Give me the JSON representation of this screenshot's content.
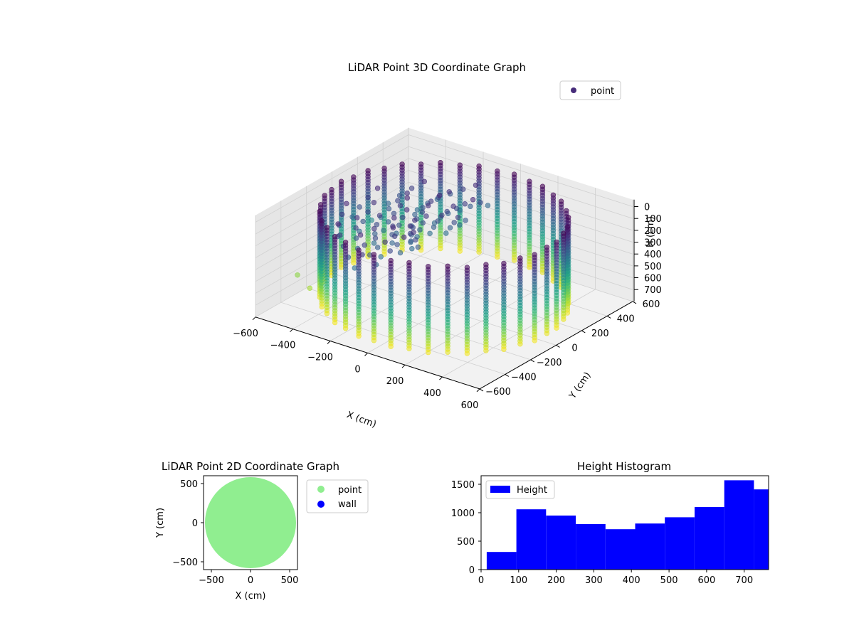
{
  "chart_data": [
    {
      "type": "scatter",
      "projection": "3d",
      "title": "LiDAR Point 3D Coordinate Graph",
      "xlabel": "X (cm)",
      "ylabel": "Y (cm)",
      "zlabel": "H (cm)",
      "xlim": [
        -600,
        600
      ],
      "ylim": [
        -600,
        600
      ],
      "zlim": [
        0,
        750
      ],
      "z_inverted": true,
      "xticks": [
        "−600",
        "−400",
        "−200",
        "0",
        "200",
        "400",
        "600"
      ],
      "yticks": [
        "−600",
        "−400",
        "−200",
        "0",
        "200",
        "400",
        "600"
      ],
      "zticks": [
        "0",
        "100",
        "200",
        "300",
        "400",
        "500",
        "600",
        "700"
      ],
      "colormap": "viridis",
      "grid": true,
      "legend": {
        "position": "top-right",
        "entries": [
          {
            "label": "point",
            "color": "#472c7a"
          }
        ]
      },
      "series": [
        {
          "name": "point",
          "description_shape": "cylindrical wall of radius ~550 cm, columns every ~10 degrees, height 0-750 cm; interior scan band near top",
          "radius": 550,
          "height_range": [
            0,
            750
          ]
        }
      ]
    },
    {
      "type": "scatter",
      "title": "LiDAR Point 2D Coordinate Graph",
      "xlabel": "X (cm)",
      "ylabel": "Y (cm)",
      "xlim": [
        -600,
        600
      ],
      "ylim": [
        -600,
        600
      ],
      "xticks": [
        "−500",
        "0",
        "500"
      ],
      "yticks": [
        "500",
        "0",
        "−500"
      ],
      "legend": {
        "position": "outside-right",
        "entries": [
          {
            "label": "point",
            "color": "#90ee90"
          },
          {
            "label": "wall",
            "color": "#0000ff"
          }
        ]
      },
      "series": [
        {
          "name": "point",
          "color": "#90ee90",
          "shape": "filled disc",
          "radius": 580
        }
      ]
    },
    {
      "type": "bar",
      "subtype": "histogram",
      "title": "Height Histogram",
      "xlim": [
        0,
        765
      ],
      "ylim": [
        0,
        1650
      ],
      "xticks": [
        "0",
        "100",
        "200",
        "300",
        "400",
        "500",
        "600",
        "700"
      ],
      "yticks": [
        "0",
        "500",
        "1000",
        "1500"
      ],
      "legend": {
        "position": "top-left",
        "entries": [
          {
            "label": "Height",
            "color": "#0000ff"
          }
        ]
      },
      "bin_edges": [
        15,
        94,
        173,
        252,
        331,
        410,
        489,
        568,
        647,
        726,
        765
      ],
      "values": [
        310,
        1060,
        950,
        800,
        710,
        810,
        920,
        1100,
        1570,
        1410
      ],
      "color": "#0000ff"
    }
  ]
}
